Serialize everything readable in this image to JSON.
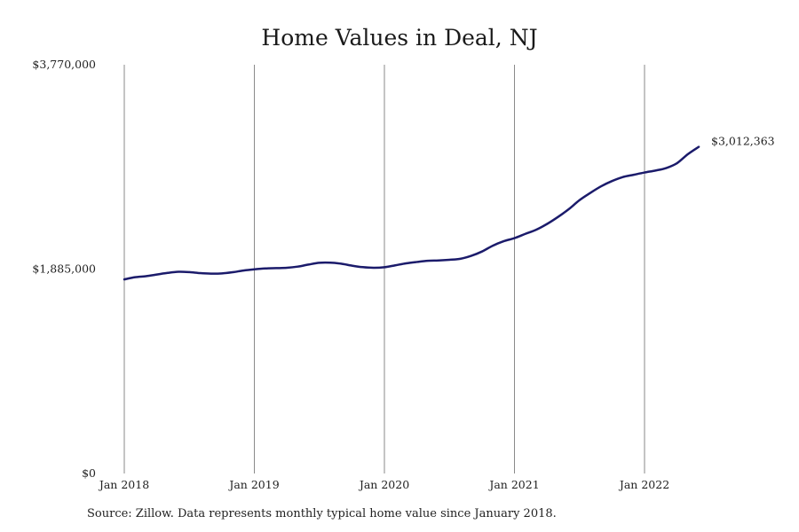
{
  "chart_data": {
    "type": "line",
    "title": "Home Values in Deal, NJ",
    "xlabel": "",
    "ylabel": "",
    "source": "Source: Zillow. Data represents monthly typical home value since January 2018.",
    "y_ticks": [
      {
        "value": 0,
        "label": "$0"
      },
      {
        "value": 1885000,
        "label": "$1,885,000"
      },
      {
        "value": 3770000,
        "label": "$3,770,000"
      }
    ],
    "x_ticks": [
      {
        "value": "2018-01",
        "label": "Jan 2018"
      },
      {
        "value": "2019-01",
        "label": "Jan 2019"
      },
      {
        "value": "2020-01",
        "label": "Jan 2020"
      },
      {
        "value": "2021-01",
        "label": "Jan 2021"
      },
      {
        "value": "2022-01",
        "label": "Jan 2022"
      }
    ],
    "ylim": [
      0,
      3770000
    ],
    "xlim": [
      "2018-01",
      "2022-06"
    ],
    "grid": "vertical",
    "line_color": "#1b1b6b",
    "end_label": "$3,012,363",
    "series": [
      {
        "x": [
          "2018-01",
          "2018-02",
          "2018-03",
          "2018-04",
          "2018-05",
          "2018-06",
          "2018-07",
          "2018-08",
          "2018-09",
          "2018-10",
          "2018-11",
          "2018-12",
          "2019-01",
          "2019-02",
          "2019-03",
          "2019-04",
          "2019-05",
          "2019-06",
          "2019-07",
          "2019-08",
          "2019-09",
          "2019-10",
          "2019-11",
          "2019-12",
          "2020-01",
          "2020-02",
          "2020-03",
          "2020-04",
          "2020-05",
          "2020-06",
          "2020-07",
          "2020-08",
          "2020-09",
          "2020-10",
          "2020-11",
          "2020-12",
          "2021-01",
          "2021-02",
          "2021-03",
          "2021-04",
          "2021-05",
          "2021-06",
          "2021-07",
          "2021-08",
          "2021-09",
          "2021-10",
          "2021-11",
          "2021-12",
          "2022-01",
          "2022-02",
          "2022-03",
          "2022-04",
          "2022-05",
          "2022-06"
        ],
        "values": [
          1790000,
          1810000,
          1820000,
          1835000,
          1850000,
          1860000,
          1857000,
          1848000,
          1843000,
          1845000,
          1856000,
          1872000,
          1883000,
          1891000,
          1894000,
          1897000,
          1908000,
          1927000,
          1943000,
          1944000,
          1935000,
          1917000,
          1903000,
          1897000,
          1902000,
          1920000,
          1938000,
          1951000,
          1962000,
          1965000,
          1971000,
          1980000,
          2007000,
          2047000,
          2101000,
          2142000,
          2171000,
          2210000,
          2248000,
          2301000,
          2365000,
          2437000,
          2521000,
          2588000,
          2649000,
          2697000,
          2734000,
          2755000,
          2776000,
          2794000,
          2817000,
          2862000,
          2945000,
          3012363
        ]
      }
    ]
  }
}
